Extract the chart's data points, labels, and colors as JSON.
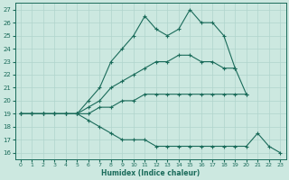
{
  "xlabel": "Humidex (Indice chaleur)",
  "bg_color": "#cce8e0",
  "grid_color": "#b0d4cc",
  "line_color": "#1a6b5a",
  "xlim": [
    -0.5,
    23.5
  ],
  "ylim": [
    15.5,
    27.5
  ],
  "xticks": [
    0,
    1,
    2,
    3,
    4,
    5,
    6,
    7,
    8,
    9,
    10,
    11,
    12,
    13,
    14,
    15,
    16,
    17,
    18,
    19,
    20,
    21,
    22,
    23
  ],
  "yticks": [
    16,
    17,
    18,
    19,
    20,
    21,
    22,
    23,
    24,
    25,
    26,
    27
  ],
  "line_top": [
    19,
    19,
    19,
    19,
    19,
    19,
    20,
    21,
    23,
    24,
    25,
    26.5,
    25.5,
    25,
    25.5,
    27,
    26,
    26,
    25,
    22.5,
    20.5,
    null,
    null,
    null
  ],
  "line_upper": [
    19,
    19,
    19,
    19,
    19,
    19,
    19.5,
    20,
    21,
    21.5,
    22,
    22.5,
    23,
    23,
    23.5,
    23.5,
    23,
    23,
    22.5,
    22.5,
    null,
    null,
    null,
    null
  ],
  "line_lower": [
    19,
    19,
    19,
    19,
    19,
    19,
    19,
    19.5,
    19.5,
    20,
    20,
    20.5,
    20.5,
    20.5,
    20.5,
    20.5,
    20.5,
    20.5,
    20.5,
    20.5,
    20.5,
    null,
    null,
    null
  ],
  "line_bottom": [
    19,
    19,
    19,
    19,
    19,
    19,
    18.5,
    18,
    17.5,
    17,
    17,
    17,
    16.5,
    16.5,
    16.5,
    16.5,
    16.5,
    16.5,
    16.5,
    16.5,
    16.5,
    17.5,
    16.5,
    16
  ]
}
